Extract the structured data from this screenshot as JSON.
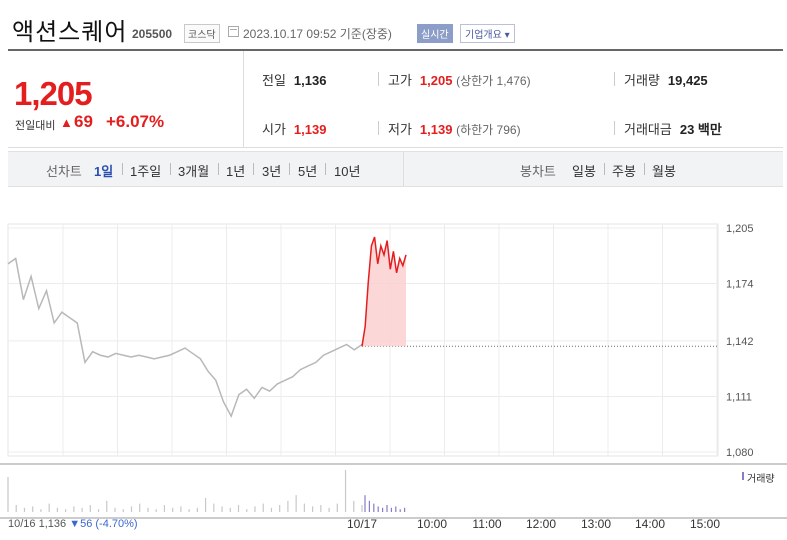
{
  "header": {
    "title": "액션스퀘어",
    "code": "205500",
    "market": "코스닥",
    "timestamp": "2023.10.17 09:52  기준(장중)",
    "realtime": "실시간",
    "company_button": "기업개요 ▾"
  },
  "price": {
    "current": "1,205",
    "change_label": "전일대비",
    "change_arrow": "▲",
    "change_value": "69",
    "change_pct": "+6.07%"
  },
  "info": {
    "prev_close_label": "전일",
    "prev_close": "1,136",
    "high_label": "고가",
    "high": "1,205",
    "high_limit": "(상한가 1,476)",
    "volume_label": "거래량",
    "volume": "19,425",
    "open_label": "시가",
    "open": "1,139",
    "low_label": "저가",
    "low": "1,139",
    "low_limit": "(하한가 796)",
    "amount_label": "거래대금",
    "amount": "23 백만"
  },
  "toolbar": {
    "line_chart_label": "선차트",
    "periods": [
      "1일",
      "1주일",
      "3개월",
      "1년",
      "3년",
      "5년",
      "10년"
    ],
    "active_period": "1일",
    "candle_chart_label": "봉차트",
    "candles": [
      "일봉",
      "주봉",
      "월봉"
    ]
  },
  "footer": {
    "prev_date": "10/16",
    "prev_price": "1,136",
    "prev_arrow": "▼",
    "prev_change": "56",
    "prev_pct": "(-4.70%)"
  },
  "volume_legend": "거래량",
  "colors": {
    "up": "#e41e1e",
    "down": "#3a67d0",
    "prev_line": "#b8b8b8",
    "volume_prev": "#c8c8c8",
    "volume_today": "#8a7cc7"
  },
  "chart_data": {
    "type": "line",
    "y_ticks": [
      1205,
      1174,
      1142,
      1111,
      1080
    ],
    "y_tick_labels": [
      "1,205",
      "1,174",
      "1,142",
      "1,111",
      "1,080"
    ],
    "ylim": [
      1080,
      1205
    ],
    "x_tick_labels": [
      "10/16",
      "10/17",
      "10:00",
      "11:00",
      "12:00",
      "13:00",
      "14:00",
      "15:00"
    ],
    "reference_price": 1139,
    "grid": true,
    "series": [
      {
        "values": [
          1185,
          1188,
          1165,
          1178,
          1160,
          1170,
          1152,
          1158,
          1155,
          1152,
          1130,
          1136,
          1134,
          1133,
          1135,
          1134,
          1133,
          1134,
          1133,
          1132,
          1133,
          1134,
          1136,
          1138,
          1135,
          1132,
          1125,
          1120,
          1108,
          1100,
          1112,
          1115,
          1110,
          1116,
          1114,
          1118,
          1120,
          1122,
          1126,
          1128,
          1130,
          1134,
          1136,
          1138,
          1140,
          1137,
          1140
        ]
      },
      {
        "values": [
          1139,
          1150,
          1175,
          1195,
          1200,
          1185,
          1195,
          1190,
          1198,
          1182,
          1192,
          1180,
          1188,
          1184,
          1190
        ]
      }
    ],
    "volume": {
      "prev_day": [
        25,
        5,
        3,
        4,
        2,
        6,
        3,
        2,
        4,
        3,
        5,
        2,
        8,
        3,
        2,
        4,
        6,
        3,
        2,
        5,
        3,
        4,
        2,
        3,
        10,
        6,
        4,
        3,
        5,
        2,
        4,
        6,
        3,
        5,
        8,
        12,
        6,
        4,
        5,
        3,
        6,
        30,
        8,
        5
      ],
      "today": [
        12,
        8,
        6,
        4,
        3,
        5,
        3,
        4,
        2,
        3
      ]
    }
  }
}
